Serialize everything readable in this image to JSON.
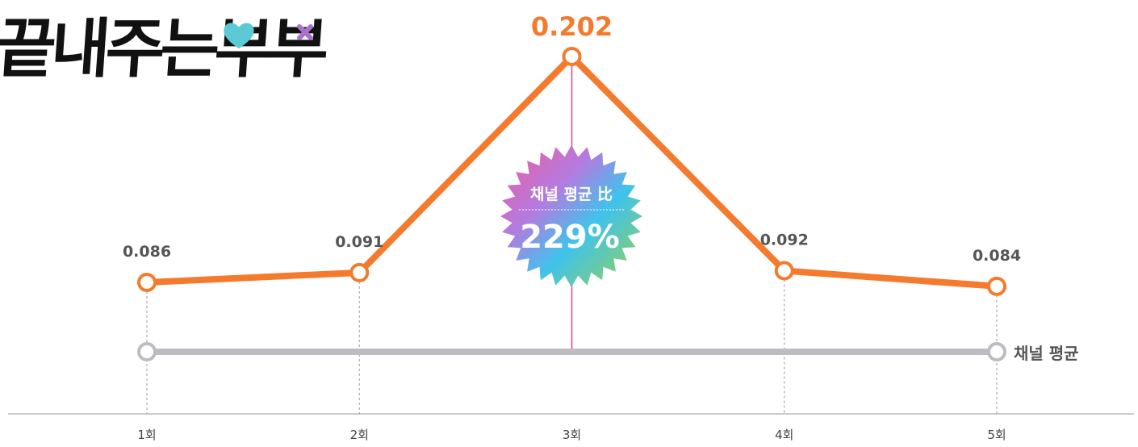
{
  "logo": {
    "text": "끝내주는부부"
  },
  "chart_data": {
    "type": "line",
    "categories": [
      "1회",
      "2회",
      "3회",
      "4회",
      "5회"
    ],
    "series": [
      {
        "values": [
          0.086,
          0.091,
          0.202,
          0.092,
          0.084
        ],
        "color": "#F47B2E"
      },
      {
        "name": "채널 평균",
        "color": "#BDBCC1"
      }
    ],
    "value_labels": [
      "0.086",
      "0.091",
      "0.202",
      "0.092",
      "0.084"
    ],
    "highlight_index": 2,
    "badge": {
      "title": "채널 평균 比",
      "value": "229%"
    }
  },
  "colors": {
    "accent": "#F47B2E",
    "average": "#BDBCC1",
    "highlight_line": "#E0458B",
    "axis": "#999999"
  }
}
